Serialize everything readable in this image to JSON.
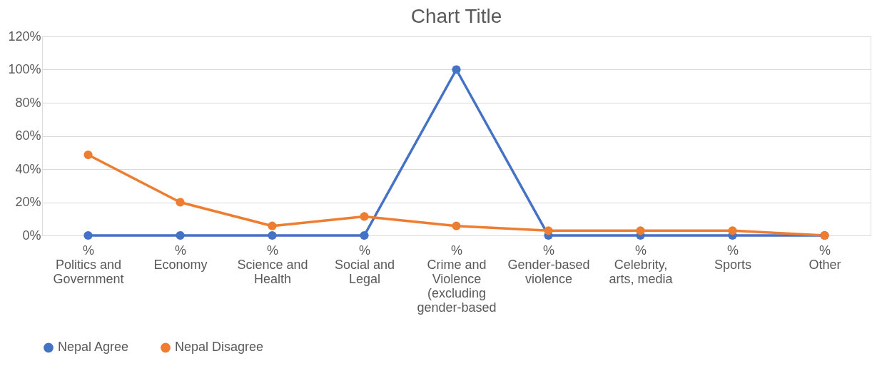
{
  "chart_data": {
    "type": "line",
    "title": "Chart Title",
    "categories": [
      "%\nPolitics and Government",
      "%\nEconomy",
      "%\nScience and Health",
      "%\nSocial and Legal",
      "%\nCrime and Violence (excluding gender-based",
      "%\nGender-based violence",
      "%\nCelebrity, arts, media",
      "%\nSports",
      "%\nOther"
    ],
    "series": [
      {
        "name": "Nepal Agree",
        "color": "#4472c4",
        "values": [
          0,
          0,
          0,
          0,
          100,
          0,
          0,
          0,
          0
        ]
      },
      {
        "name": "Nepal Disagree",
        "color": "#ed7d31",
        "values": [
          48.6,
          20,
          5.7,
          11.4,
          5.7,
          2.9,
          2.9,
          2.9,
          0
        ]
      }
    ],
    "ylim": [
      0,
      120
    ],
    "yticks": [
      {
        "value": 0,
        "label": "0%"
      },
      {
        "value": 20,
        "label": "20%"
      },
      {
        "value": 40,
        "label": "40%"
      },
      {
        "value": 60,
        "label": "60%"
      },
      {
        "value": 80,
        "label": "80%"
      },
      {
        "value": 100,
        "label": "100%"
      },
      {
        "value": 120,
        "label": "120%"
      }
    ],
    "grid": "y",
    "legend": "bottom",
    "marker": "circle",
    "line_style": "solid"
  }
}
